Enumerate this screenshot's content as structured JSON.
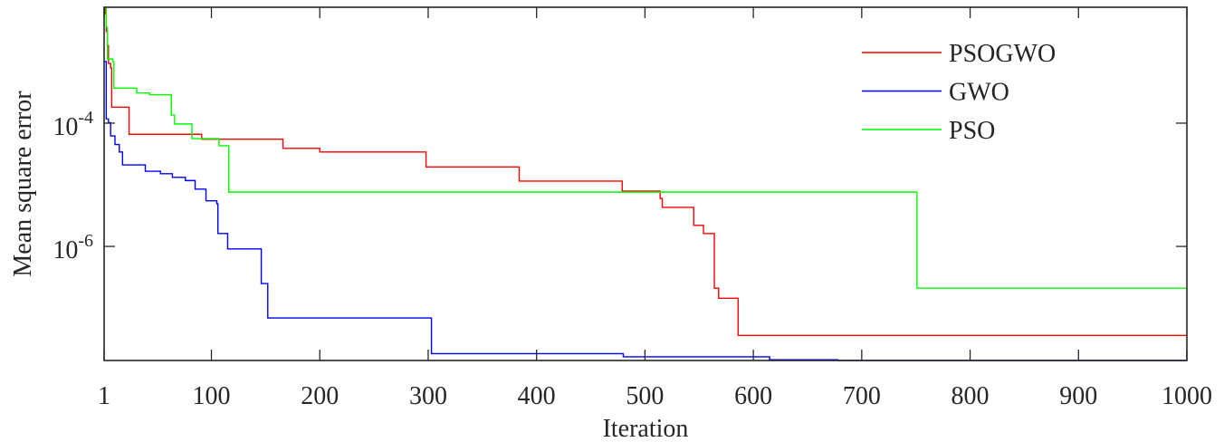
{
  "chart_data": {
    "type": "line",
    "title": "",
    "xlabel": "Iteration",
    "ylabel": "Mean square error",
    "xlim": [
      1,
      1000
    ],
    "ylim": [
      1.41e-08,
      0.0076
    ],
    "yscale": "log",
    "step": true,
    "grid": false,
    "legend_position": "top-right",
    "xticks": [
      1,
      100,
      200,
      300,
      400,
      500,
      600,
      700,
      800,
      900,
      1000
    ],
    "yticks": [
      {
        "value": 0.0001,
        "base": "10",
        "exp": "-4"
      },
      {
        "value": 1e-06,
        "base": "10",
        "exp": "-6"
      }
    ],
    "series": [
      {
        "name": "PSOGWO",
        "color": "#ff0000",
        "points": [
          [
            1,
            0.0076
          ],
          [
            2,
            0.006
          ],
          [
            3,
            0.0031
          ],
          [
            4,
            0.00182
          ],
          [
            5,
            0.00093
          ],
          [
            7,
            0.00079
          ],
          [
            8,
            0.000182
          ],
          [
            24,
            6.6e-05
          ],
          [
            91,
            5.5e-05
          ],
          [
            166,
            3.9e-05
          ],
          [
            200,
            3.4e-05
          ],
          [
            298,
            1.95e-05
          ],
          [
            384,
            1.15e-05
          ],
          [
            479,
            7.9e-06
          ],
          [
            514,
            6e-06
          ],
          [
            516,
            4.3e-06
          ],
          [
            545,
            2.2e-06
          ],
          [
            554,
            1.62e-06
          ],
          [
            564,
            2.1e-07
          ],
          [
            568,
            1.44e-07
          ],
          [
            586,
            3.6e-08
          ],
          [
            1000,
            3.6e-08
          ]
        ]
      },
      {
        "name": "GWO",
        "color": "#0000ff",
        "points": [
          [
            1,
            0.001
          ],
          [
            3,
            0.000117
          ],
          [
            5,
            0.000102
          ],
          [
            7,
            6.2e-05
          ],
          [
            11,
            4.5e-05
          ],
          [
            15,
            3.4e-05
          ],
          [
            18,
            2.1e-05
          ],
          [
            39,
            1.66e-05
          ],
          [
            53,
            1.51e-05
          ],
          [
            64,
            1.32e-05
          ],
          [
            76,
            1.17e-05
          ],
          [
            85,
            8.5e-06
          ],
          [
            95,
            5.5e-06
          ],
          [
            105,
            4.9e-06
          ],
          [
            106,
            1.62e-06
          ],
          [
            115,
            9.1e-07
          ],
          [
            146,
            2.5e-07
          ],
          [
            152,
            6.9e-08
          ],
          [
            303,
            1.82e-08
          ],
          [
            480,
            1.62e-08
          ],
          [
            615,
            1.45e-08
          ],
          [
            678,
            1.41e-08
          ],
          [
            1000,
            1.41e-08
          ]
        ]
      },
      {
        "name": "PSO",
        "color": "#00ff00",
        "points": [
          [
            1,
            0.0076
          ],
          [
            3,
            0.0036
          ],
          [
            4,
            0.0011
          ],
          [
            9,
            0.001
          ],
          [
            10,
            0.00037
          ],
          [
            31,
            0.00031
          ],
          [
            43,
            0.00029
          ],
          [
            63,
            0.000135
          ],
          [
            66,
            9.7e-05
          ],
          [
            82,
            5.6e-05
          ],
          [
            107,
            4.3e-05
          ],
          [
            116,
            7.6e-06
          ],
          [
            751,
            2.1e-07
          ],
          [
            1000,
            2.1e-07
          ]
        ]
      }
    ]
  }
}
